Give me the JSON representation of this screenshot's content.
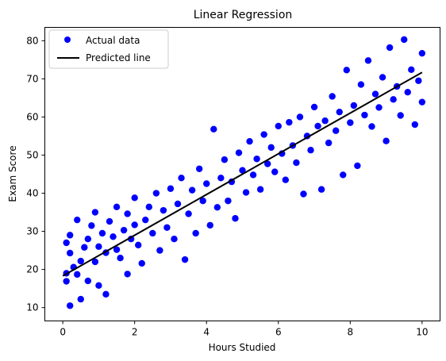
{
  "chart_data": {
    "type": "scatter",
    "title": "Linear Regression",
    "xlabel": "Hours Studied",
    "ylabel": "Exam Score",
    "xlim": [
      -0.5,
      10.5
    ],
    "ylim": [
      6.5,
      83.5
    ],
    "xticks": [
      "0",
      "2",
      "4",
      "6",
      "8",
      "10"
    ],
    "yticks": [
      "10",
      "20",
      "30",
      "40",
      "50",
      "60",
      "70",
      "80"
    ],
    "grid": false,
    "legend": "top-left",
    "series": [
      {
        "name": "Actual data",
        "kind": "scatter",
        "color": "#0000ff",
        "points": [
          [
            0.1,
            19.0
          ],
          [
            0.1,
            27.0
          ],
          [
            0.2,
            29.0
          ],
          [
            0.2,
            10.5
          ],
          [
            0.1,
            16.9
          ],
          [
            0.2,
            24.3
          ],
          [
            0.3,
            20.6
          ],
          [
            0.4,
            33.0
          ],
          [
            0.4,
            18.7
          ],
          [
            0.5,
            22.2
          ],
          [
            0.5,
            12.2
          ],
          [
            0.6,
            25.8
          ],
          [
            0.7,
            17.0
          ],
          [
            0.7,
            28.0
          ],
          [
            0.8,
            31.5
          ],
          [
            0.9,
            35.0
          ],
          [
            0.9,
            22.0
          ],
          [
            1.0,
            15.8
          ],
          [
            1.0,
            26.0
          ],
          [
            1.1,
            29.5
          ],
          [
            1.2,
            13.5
          ],
          [
            1.2,
            24.4
          ],
          [
            1.3,
            32.6
          ],
          [
            1.4,
            28.6
          ],
          [
            1.5,
            36.4
          ],
          [
            1.5,
            25.2
          ],
          [
            1.6,
            23.0
          ],
          [
            1.7,
            30.3
          ],
          [
            1.8,
            18.8
          ],
          [
            1.8,
            34.6
          ],
          [
            1.9,
            28.0
          ],
          [
            2.0,
            31.7
          ],
          [
            2.0,
            38.8
          ],
          [
            2.1,
            26.4
          ],
          [
            2.2,
            21.6
          ],
          [
            2.3,
            33.0
          ],
          [
            2.4,
            36.4
          ],
          [
            2.5,
            29.5
          ],
          [
            2.6,
            40.0
          ],
          [
            2.7,
            25.0
          ],
          [
            2.8,
            35.5
          ],
          [
            2.9,
            31.0
          ],
          [
            3.0,
            41.2
          ],
          [
            3.1,
            28.0
          ],
          [
            3.2,
            37.2
          ],
          [
            3.3,
            44.0
          ],
          [
            3.4,
            22.6
          ],
          [
            3.5,
            34.6
          ],
          [
            3.6,
            40.8
          ],
          [
            3.7,
            29.5
          ],
          [
            3.8,
            46.4
          ],
          [
            3.9,
            38.0
          ],
          [
            4.0,
            42.5
          ],
          [
            4.1,
            31.6
          ],
          [
            4.2,
            56.8
          ],
          [
            4.3,
            36.3
          ],
          [
            4.4,
            44.0
          ],
          [
            4.5,
            48.8
          ],
          [
            4.6,
            38.0
          ],
          [
            4.7,
            43.0
          ],
          [
            4.8,
            33.4
          ],
          [
            4.9,
            50.6
          ],
          [
            5.0,
            46.0
          ],
          [
            5.1,
            40.2
          ],
          [
            5.2,
            53.6
          ],
          [
            5.3,
            44.8
          ],
          [
            5.4,
            49.0
          ],
          [
            5.5,
            41.0
          ],
          [
            5.6,
            55.4
          ],
          [
            5.7,
            47.7
          ],
          [
            5.8,
            52.0
          ],
          [
            5.9,
            45.6
          ],
          [
            6.0,
            57.6
          ],
          [
            6.1,
            50.4
          ],
          [
            6.2,
            43.5
          ],
          [
            6.3,
            58.6
          ],
          [
            6.4,
            52.5
          ],
          [
            6.5,
            48.0
          ],
          [
            6.6,
            60.0
          ],
          [
            6.7,
            39.8
          ],
          [
            6.8,
            55.0
          ],
          [
            6.9,
            51.3
          ],
          [
            7.0,
            62.6
          ],
          [
            7.1,
            57.6
          ],
          [
            7.2,
            41.0
          ],
          [
            7.3,
            59.0
          ],
          [
            7.4,
            53.2
          ],
          [
            7.5,
            65.4
          ],
          [
            7.6,
            56.4
          ],
          [
            7.7,
            61.3
          ],
          [
            7.8,
            44.8
          ],
          [
            7.9,
            72.3
          ],
          [
            8.0,
            58.5
          ],
          [
            8.1,
            63.0
          ],
          [
            8.2,
            47.2
          ],
          [
            8.3,
            68.5
          ],
          [
            8.4,
            60.5
          ],
          [
            8.5,
            74.8
          ],
          [
            8.6,
            57.5
          ],
          [
            8.7,
            66.0
          ],
          [
            8.8,
            62.5
          ],
          [
            8.9,
            70.4
          ],
          [
            9.0,
            53.7
          ],
          [
            9.1,
            78.2
          ],
          [
            9.2,
            64.6
          ],
          [
            9.3,
            68.0
          ],
          [
            9.4,
            60.4
          ],
          [
            9.5,
            80.3
          ],
          [
            9.6,
            66.5
          ],
          [
            9.7,
            72.4
          ],
          [
            9.8,
            58.0
          ],
          [
            9.9,
            69.5
          ],
          [
            10.0,
            76.7
          ],
          [
            10.0,
            63.9
          ]
        ]
      },
      {
        "name": "Predicted line",
        "kind": "line",
        "color": "#000000",
        "points": [
          [
            0.0,
            18.3
          ],
          [
            10.0,
            71.7
          ]
        ]
      }
    ]
  }
}
